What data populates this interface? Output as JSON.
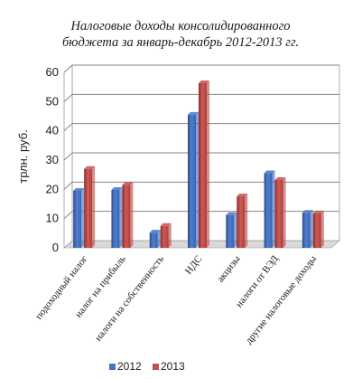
{
  "chart_data": {
    "type": "bar",
    "title_lines": [
      "Налоговые доходы консолидированного",
      "бюджета за январь-декабрь 2012-2013 гг."
    ],
    "ylabel": "трлн. руб.",
    "xlabel": "",
    "ylim": [
      0,
      60
    ],
    "yticks": [
      0,
      10,
      20,
      30,
      40,
      50,
      60
    ],
    "grid": true,
    "legend_position": "bottom",
    "categories": [
      "подоходный налог",
      "налог на прибыль",
      "налоги на собственность",
      "НДС",
      "акцизы",
      "налоги от ВЭД",
      "другие налоговые доходы"
    ],
    "series": [
      {
        "name": "2012",
        "color": "#4472c4",
        "values": [
          19.5,
          19.8,
          5.2,
          45.5,
          11.2,
          25.5,
          12.0
        ]
      },
      {
        "name": "2013",
        "color": "#c0504d",
        "values": [
          27.0,
          21.5,
          7.5,
          56.3,
          17.6,
          23.2,
          11.8
        ]
      }
    ]
  }
}
